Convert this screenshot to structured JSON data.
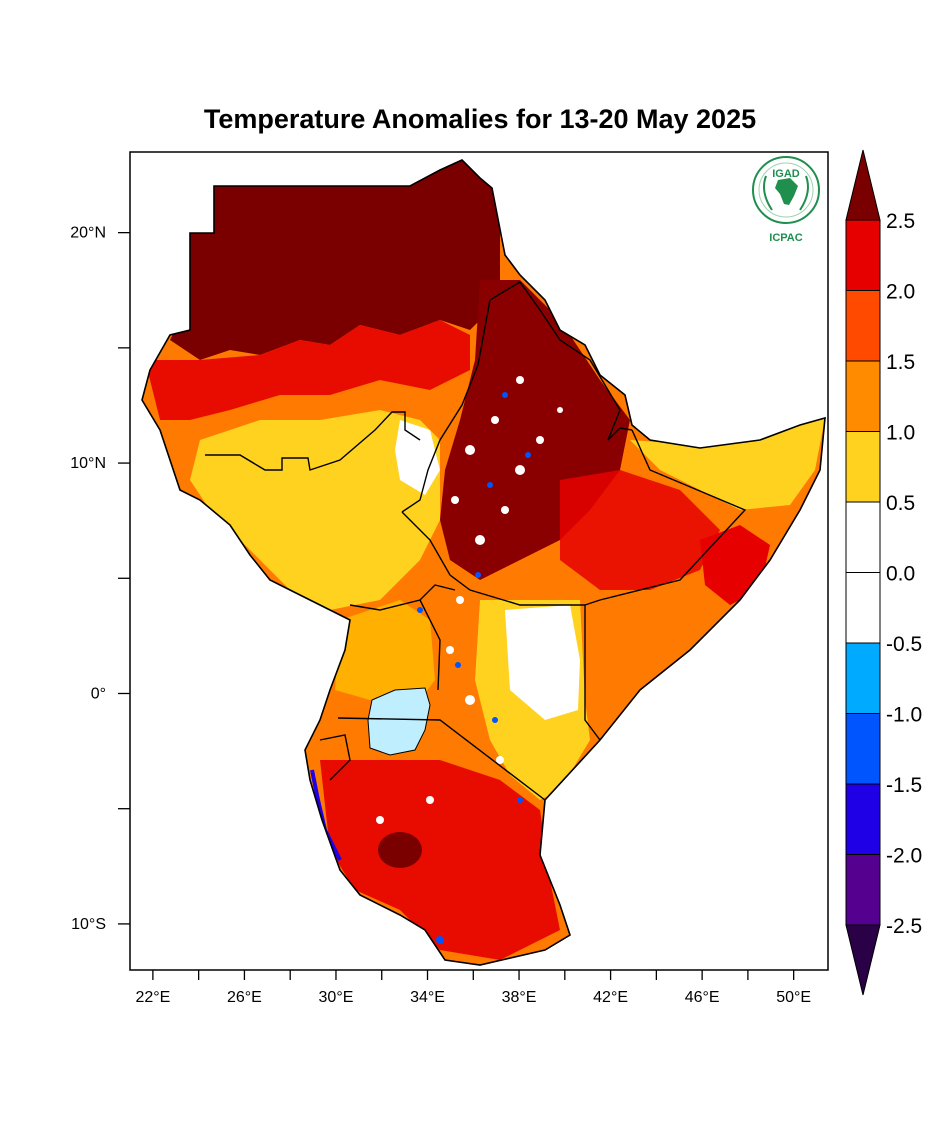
{
  "title": "Temperature Anomalies for 13-20 May 2025",
  "logo": {
    "top_text": "IGAD",
    "bottom_text": "ICPAC",
    "color": "#1f8f4e"
  },
  "map": {
    "lon_range": [
      21,
      51.5
    ],
    "lat_range": [
      -12,
      23.5
    ],
    "x_ticks": [
      {
        "value": 22,
        "label": "22°E"
      },
      {
        "value": 26,
        "label": "26°E"
      },
      {
        "value": 30,
        "label": "30°E"
      },
      {
        "value": 34,
        "label": "34°E"
      },
      {
        "value": 38,
        "label": "38°E"
      },
      {
        "value": 42,
        "label": "42°E"
      },
      {
        "value": 46,
        "label": "46°E"
      },
      {
        "value": 50,
        "label": "50°E"
      }
    ],
    "x_minor_ticks": [
      24,
      28,
      32,
      36,
      40,
      44,
      48
    ],
    "y_ticks": [
      {
        "value": 20,
        "label": "20°N"
      },
      {
        "value": 10,
        "label": "10°N"
      },
      {
        "value": 0,
        "label": "0°"
      },
      {
        "value": -10,
        "label": "10°S"
      }
    ],
    "y_minor_ticks": [
      15,
      5,
      -5
    ]
  },
  "colorbar": {
    "levels": [
      "2.5",
      "2.0",
      "1.5",
      "1.0",
      "0.5",
      "0.0",
      "-0.5",
      "-1.0",
      "-1.5",
      "-2.0",
      "-2.5"
    ],
    "colors_top_to_bottom": [
      "#7a0000",
      "#e60000",
      "#ff4a00",
      "#ff8c00",
      "#ffd21f",
      "#ffffff",
      "#ffffff",
      "#00aaff",
      "#0055ff",
      "#1f00e6",
      "#560090",
      "#2a0046"
    ]
  }
}
